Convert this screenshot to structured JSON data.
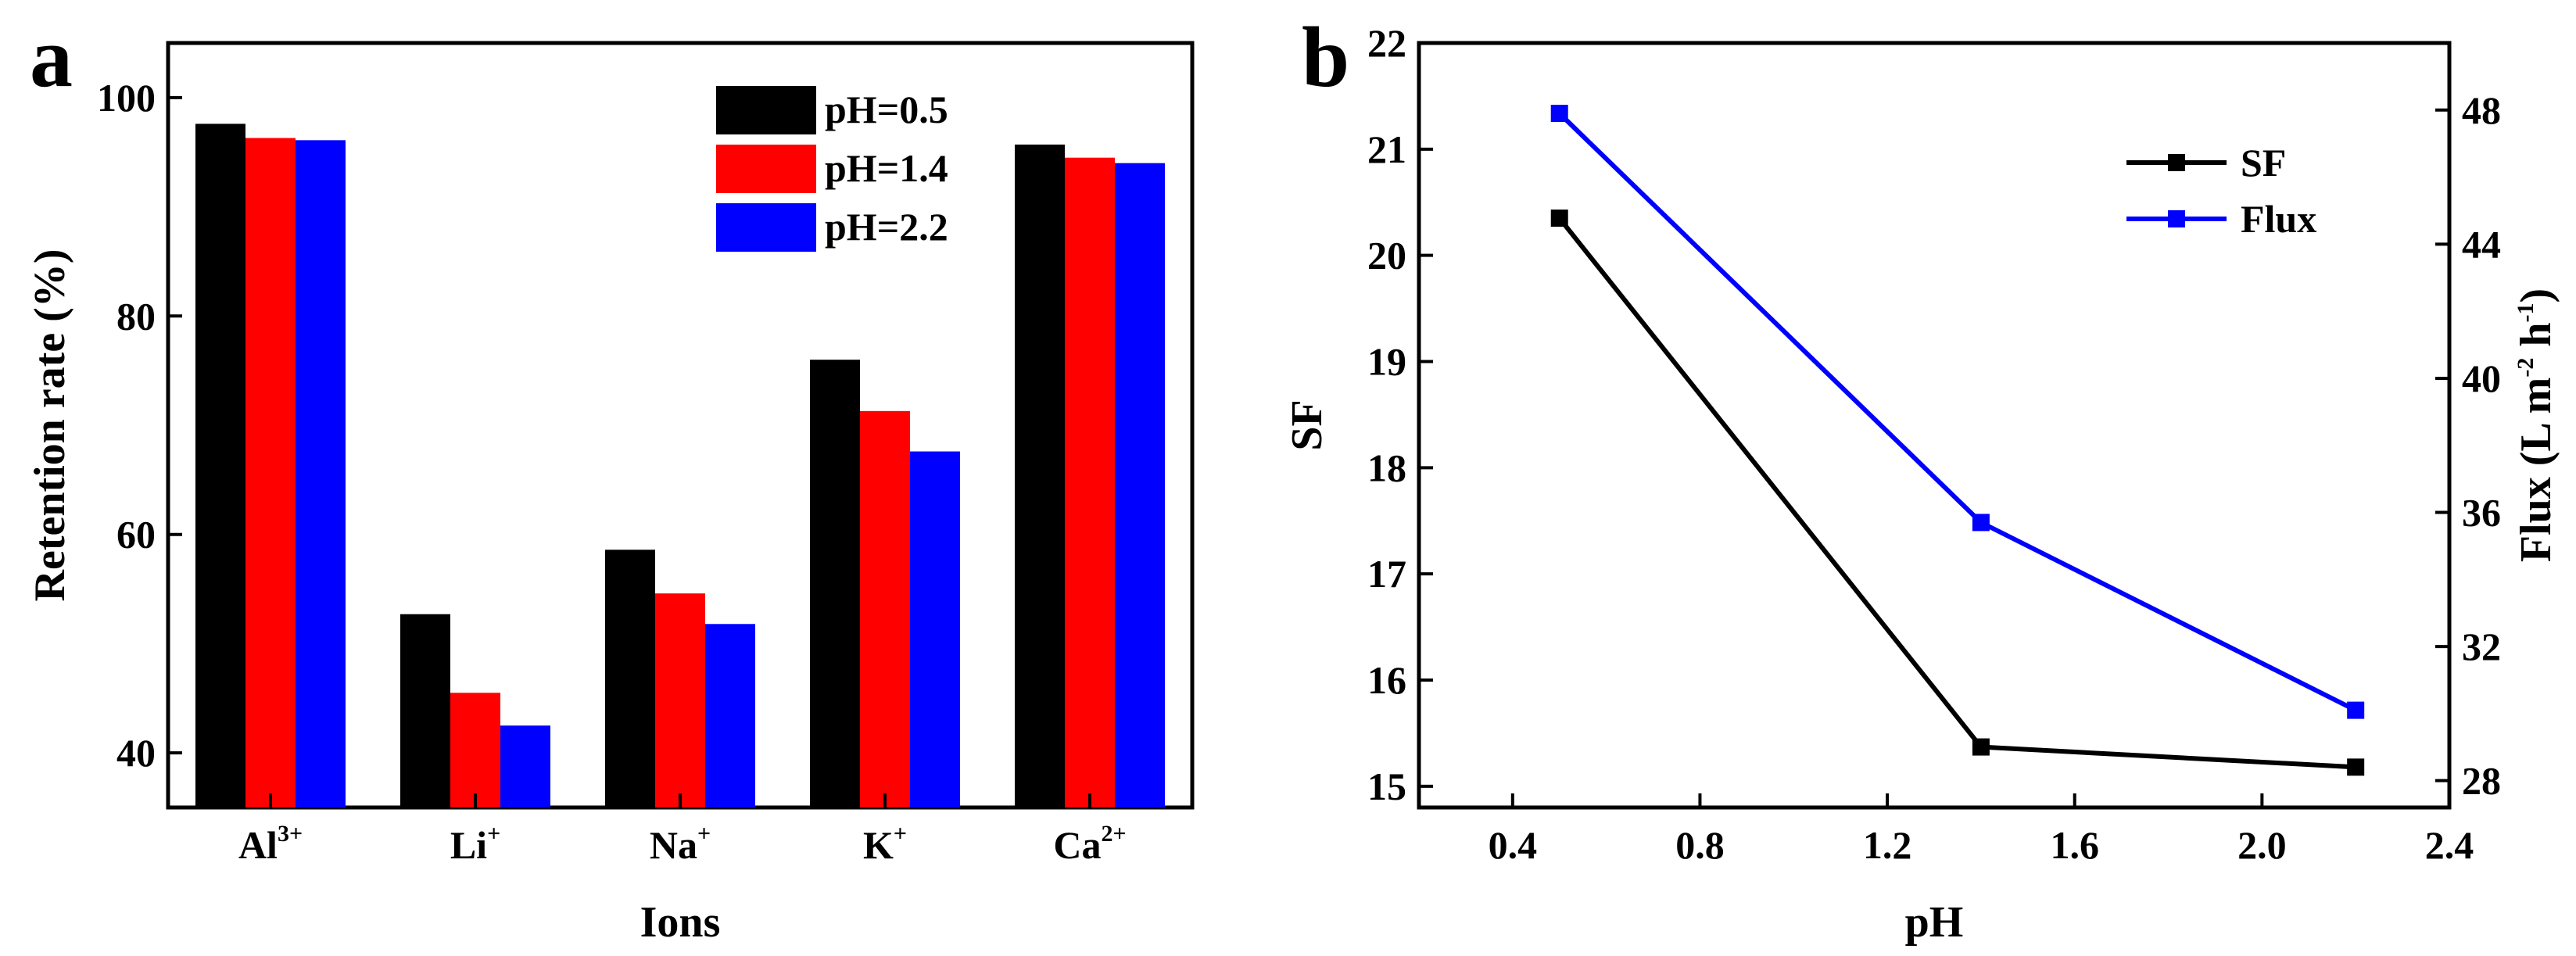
{
  "chart_data": [
    {
      "panel": "a",
      "type": "bar",
      "title": "",
      "xlabel": "Ions",
      "ylabel": "Retention rate (%)",
      "ylim": [
        35,
        105
      ],
      "yticks": [
        40,
        60,
        80,
        100
      ],
      "categories": [
        {
          "base": "Al",
          "sup": "3+"
        },
        {
          "base": "Li",
          "sup": "+"
        },
        {
          "base": "Na",
          "sup": "+"
        },
        {
          "base": "K",
          "sup": "+"
        },
        {
          "base": "Ca",
          "sup": "2+"
        }
      ],
      "series": [
        {
          "name": "pH=0.5",
          "color": "#000000",
          "values": [
            97.6,
            52.7,
            58.6,
            76.0,
            95.7
          ]
        },
        {
          "name": "pH=1.4",
          "color": "#ff0000",
          "values": [
            96.3,
            45.5,
            54.6,
            71.3,
            94.5
          ]
        },
        {
          "name": "pH=2.2",
          "color": "#0000ff",
          "values": [
            96.1,
            42.5,
            51.8,
            67.6,
            94.0
          ]
        }
      ],
      "legend_position": "top-right",
      "grid": false
    },
    {
      "panel": "b",
      "type": "line",
      "title": "",
      "xlabel": "pH",
      "ylabel": "SF",
      "y2label": {
        "base": "Flux (L m",
        "sup1": "-2",
        "mid": " h",
        "sup2": "-1",
        "end": ")"
      },
      "xlim": [
        0.2,
        2.4
      ],
      "xticks": [
        "0.4",
        "0.8",
        "1.2",
        "1.6",
        "2.0",
        "2.4"
      ],
      "ylim": [
        14.8,
        22.0
      ],
      "yticks": [
        15,
        16,
        17,
        18,
        19,
        20,
        21,
        22
      ],
      "y2lim": [
        27.2,
        50.0
      ],
      "y2ticks": [
        28,
        32,
        36,
        40,
        44,
        48
      ],
      "series": [
        {
          "name": "SF",
          "color": "#000000",
          "axis": "left",
          "x": [
            0.5,
            1.4,
            2.2
          ],
          "y": [
            20.35,
            15.37,
            15.18
          ]
        },
        {
          "name": "Flux",
          "color": "#0000ff",
          "axis": "right",
          "x": [
            0.5,
            1.4,
            2.2
          ],
          "y": [
            47.9,
            35.7,
            30.1
          ]
        }
      ],
      "legend_position": "top-right",
      "grid": false
    }
  ]
}
